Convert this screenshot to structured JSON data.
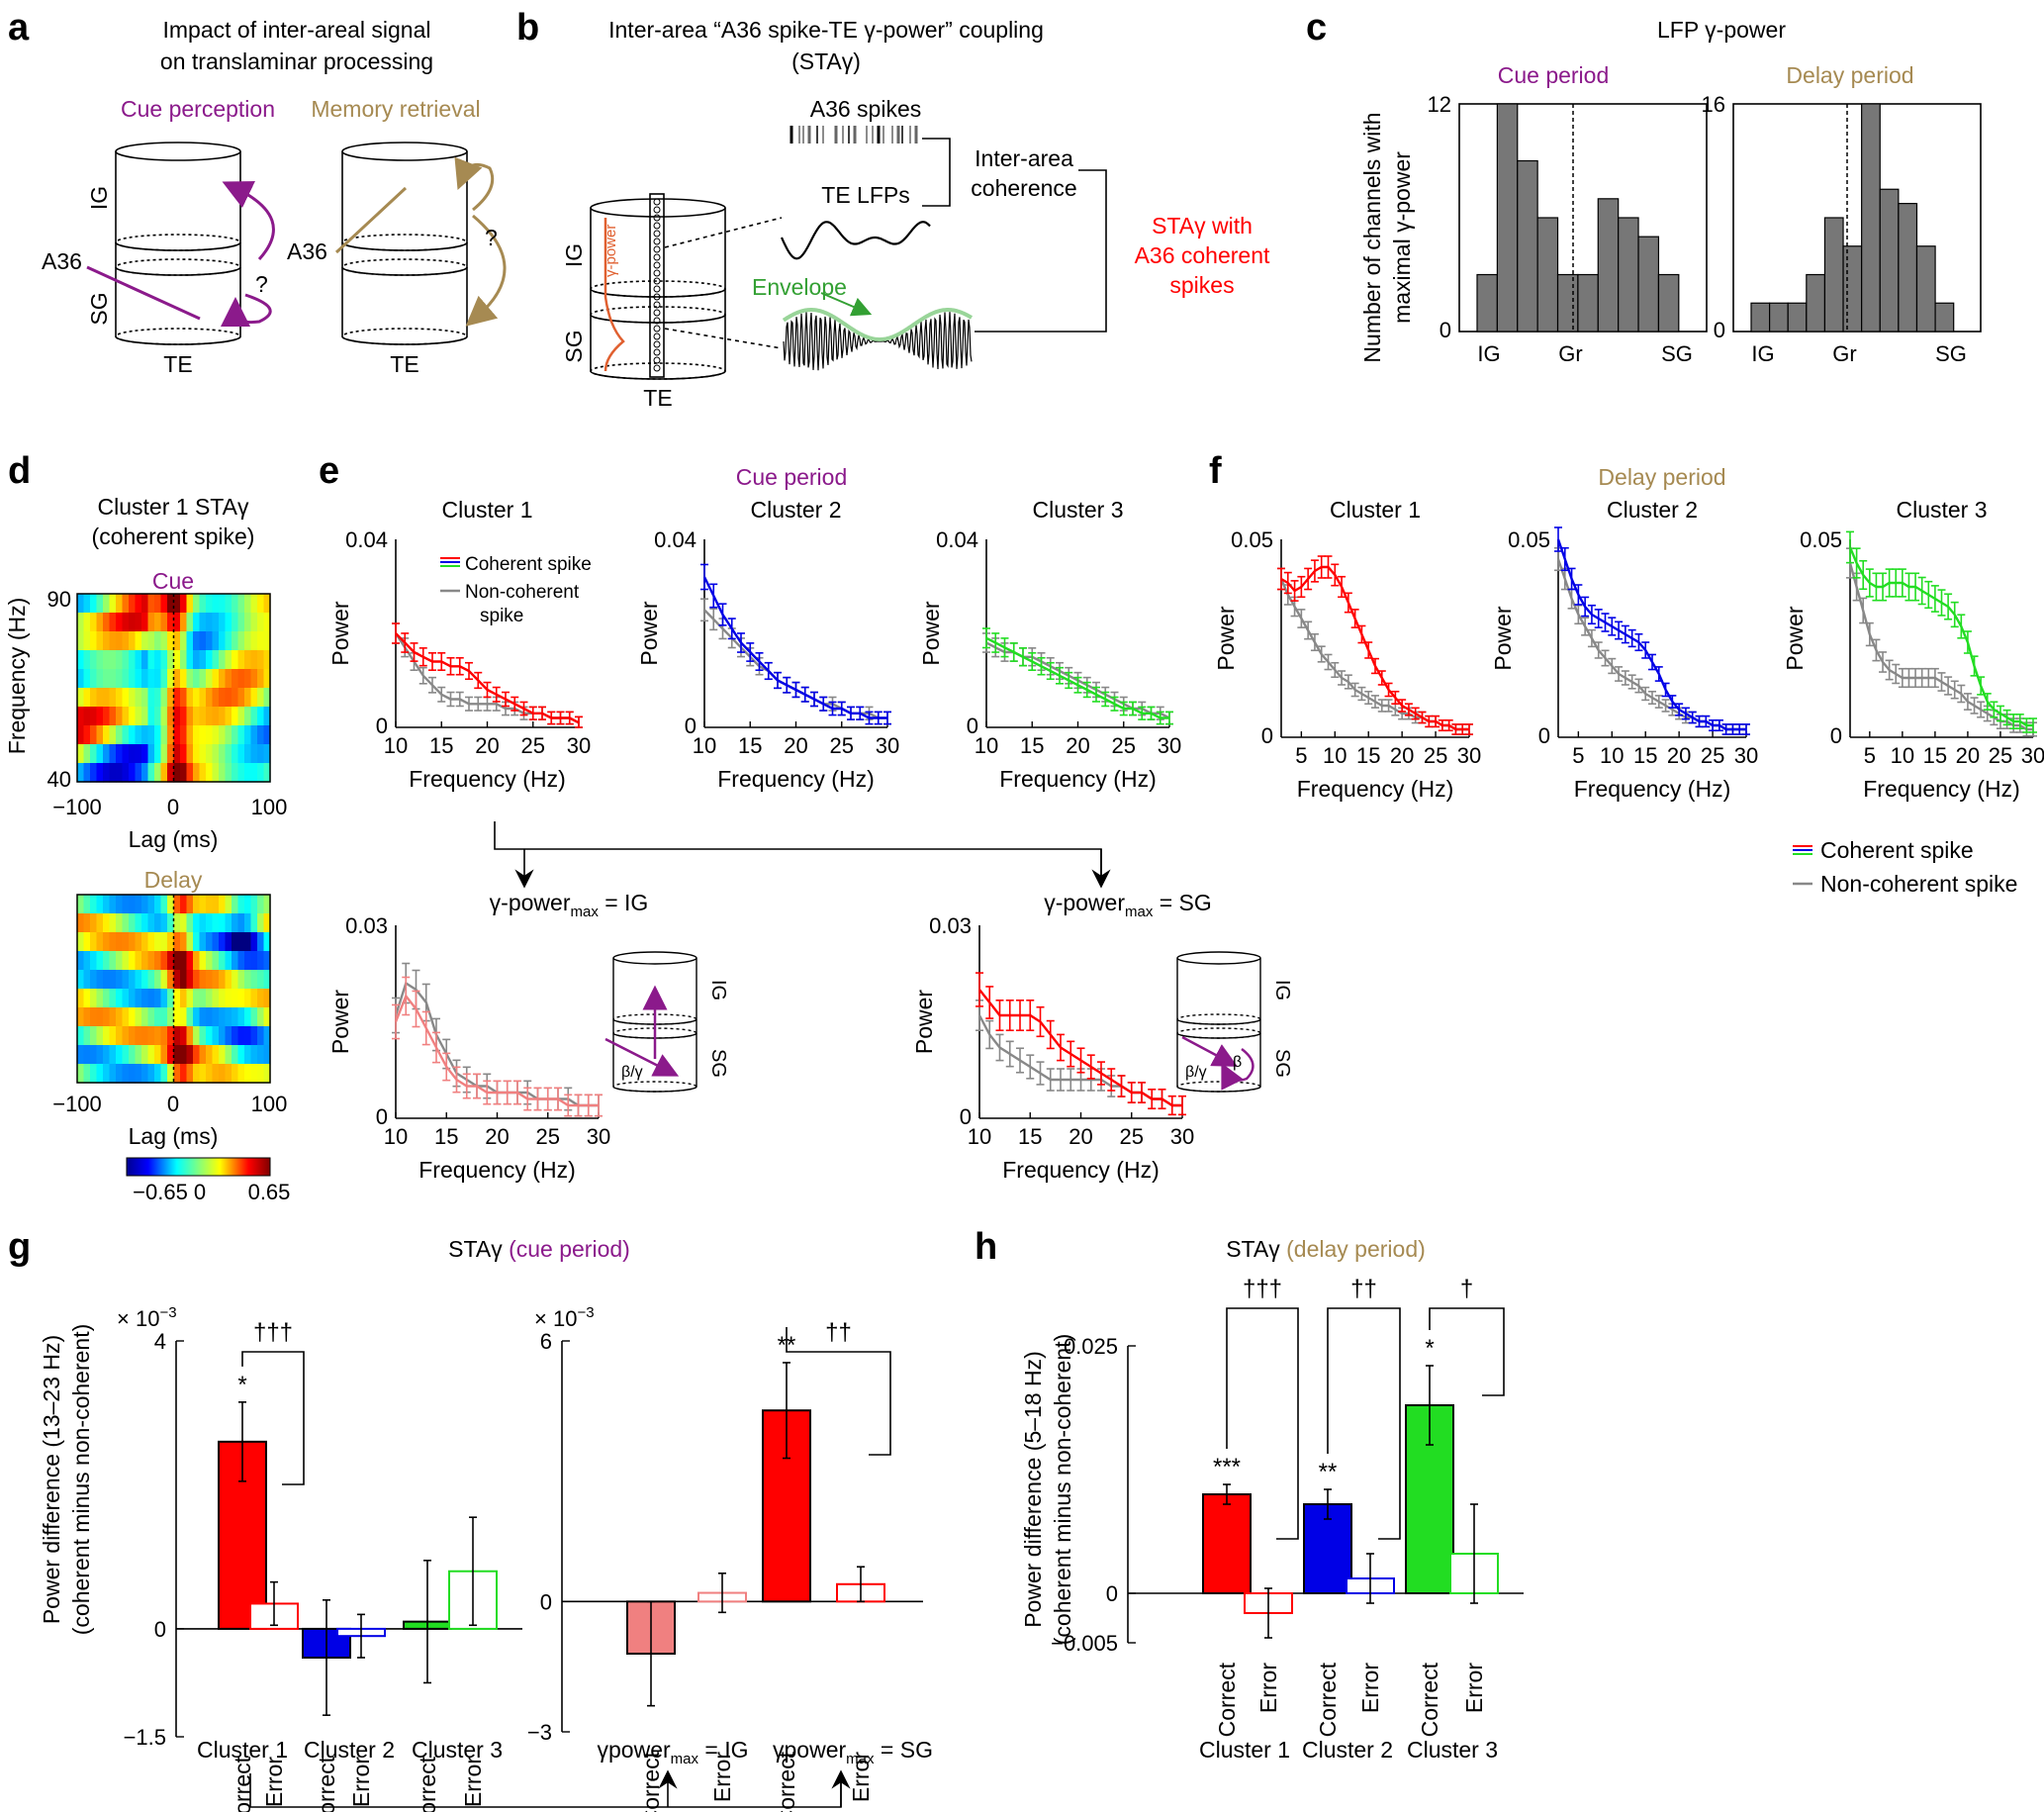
{
  "colors": {
    "cue": "#8B1A8B",
    "delay": "#A68A52",
    "red": "#FF0000",
    "blue": "#0000E6",
    "green": "#22DD22",
    "gray": "#888888",
    "pink": "#F08080",
    "envelope": "#33A033"
  },
  "panels": {
    "a": {
      "label": "a",
      "title_line1": "Impact of inter-areal signal",
      "title_line2": "on translaminar processing",
      "cue_perception": "Cue perception",
      "memory_retrieval": "Memory retrieval",
      "ig": "IG",
      "sg": "SG",
      "te": "TE",
      "a36": "A36",
      "q": "?"
    },
    "b": {
      "label": "b",
      "title_line1": "Inter-area “A36 spike-TE γ-power” coupling",
      "title_line2": "(STAγ)",
      "a36_spikes": "A36 spikes",
      "te_lfps": "TE LFPs",
      "inter_area_line1": "Inter-area",
      "inter_area_line2": "coherence",
      "envelope": "Envelope",
      "gamma_power": "γ-power",
      "sta_line1": "STAγ with",
      "sta_line2": "A36 coherent",
      "sta_line3": "spikes",
      "ig": "IG",
      "sg": "SG",
      "te": "TE"
    },
    "c": {
      "label": "c",
      "title": "LFP γ-power",
      "ylabel_line1": "Number of channels with",
      "ylabel_line2": "maximal γ-power",
      "cue": "Cue period",
      "delay": "Delay period",
      "x_ticks": [
        "IG",
        "Gr",
        "SG"
      ],
      "cue_ymax": "12",
      "delay_ymax": "16",
      "zero": "0"
    },
    "d": {
      "label": "d",
      "title_line1": "Cluster 1 STAγ",
      "title_line2": "(coherent spike)",
      "cue": "Cue",
      "delay": "Delay",
      "ylabel": "Frequency (Hz)",
      "xlabel": "Lag (ms)",
      "y_ticks": [
        "90",
        "40"
      ],
      "x_ticks": [
        "−100",
        "0",
        "100"
      ],
      "colorbar_ticks": [
        "−0.65",
        "0",
        "0.65"
      ]
    },
    "e": {
      "label": "e",
      "period": "Cue period",
      "clusters": [
        "Cluster 1",
        "Cluster 2",
        "Cluster 3"
      ],
      "ymax": "0.04",
      "zero": "0",
      "ylabel": "Power",
      "xlabel": "Frequency (Hz)",
      "x_ticks": [
        "10",
        "15",
        "20",
        "25",
        "30"
      ],
      "legend_coherent": "Coherent spike",
      "legend_noncoh_line1": "Non-coherent",
      "legend_noncoh_line2": "spike",
      "ig_title_prefix": "γ-power",
      "ig_title_sub": "max",
      "ig_title_suffix": " = IG",
      "sg_title_suffix": " = SG",
      "sub_ymax": "0.03",
      "beta_gamma": "β/γ",
      "beta": "β"
    },
    "f": {
      "label": "f",
      "period": "Delay period",
      "clusters": [
        "Cluster 1",
        "Cluster 2",
        "Cluster 3"
      ],
      "ymax": "0.05",
      "zero": "0",
      "ylabel": "Power",
      "xlabel": "Frequency (Hz)",
      "x_ticks": [
        "5",
        "10",
        "15",
        "20",
        "25",
        "30"
      ],
      "legend_coherent": "Coherent spike",
      "legend_noncoherent": "Non-coherent spike"
    },
    "g": {
      "label": "g",
      "title_prefix": "STAγ ",
      "title_period": "(cue period)",
      "ylabel_line1": "Power difference (13–23 Hz)",
      "ylabel_line2": "(coherent minus non-coherent)",
      "scale": "× 10",
      "scale_exp": "−3",
      "left_ticks": [
        "4",
        "0",
        "−1.5"
      ],
      "right_ticks": [
        "6",
        "0",
        "−3"
      ],
      "correct": "Correct",
      "error": "Error",
      "groups_left": [
        "Cluster 1",
        "Cluster 2",
        "Cluster 3"
      ],
      "ig_group": "γpower",
      "sg_group": "γpower",
      "sub": "max",
      "ig_suffix": " = IG",
      "sg_suffix": " = SG",
      "sig": [
        "*",
        "**",
        "†††",
        "††"
      ]
    },
    "h": {
      "label": "h",
      "title_prefix": "STAγ ",
      "title_period": "(delay period)",
      "ylabel_line1": "Power difference (5–18 Hz)",
      "ylabel_line2": "(coherent minus non-coherent)",
      "ticks": [
        "0.025",
        "0",
        "−0.005"
      ],
      "correct": "Correct",
      "error": "Error",
      "groups": [
        "Cluster 1",
        "Cluster 2",
        "Cluster 3"
      ],
      "sig": [
        "***",
        "**",
        "*",
        "†††",
        "††",
        "†"
      ]
    }
  },
  "chart_data": [
    {
      "id": "c-cue",
      "type": "bar",
      "title": "Cue period",
      "ylim": [
        0,
        12
      ],
      "values": [
        3,
        12,
        9,
        6,
        3,
        3,
        7,
        6,
        5,
        3
      ]
    },
    {
      "id": "c-delay",
      "type": "bar",
      "title": "Delay period",
      "ylim": [
        0,
        16
      ],
      "values": [
        2,
        2,
        2,
        4,
        8,
        6,
        16,
        10,
        9,
        6,
        2
      ]
    },
    {
      "id": "e-c1",
      "type": "line",
      "title": "Cluster 1",
      "xlabel": "Frequency (Hz)",
      "ylabel": "Power",
      "ylim": [
        0,
        0.04
      ],
      "x": [
        10,
        11,
        12,
        13,
        14,
        15,
        16,
        17,
        18,
        19,
        20,
        21,
        22,
        23,
        24,
        25,
        26,
        27,
        28,
        29,
        30
      ],
      "series": [
        {
          "name": "Coherent spike",
          "values": [
            0.02,
            0.018,
            0.016,
            0.015,
            0.014,
            0.014,
            0.013,
            0.013,
            0.012,
            0.01,
            0.008,
            0.007,
            0.006,
            0.005,
            0.004,
            0.003,
            0.003,
            0.002,
            0.002,
            0.002,
            0.001
          ]
        },
        {
          "name": "Non-coherent spike",
          "values": [
            0.02,
            0.017,
            0.014,
            0.011,
            0.009,
            0.007,
            0.006,
            0.006,
            0.005,
            0.005,
            0.005,
            0.005,
            0.004,
            0.004,
            0.003,
            0.003,
            0.003,
            0.002,
            0.002,
            0.002,
            0.001
          ]
        }
      ]
    },
    {
      "id": "e-c2",
      "type": "line",
      "title": "Cluster 2",
      "ylim": [
        0,
        0.04
      ],
      "x": [
        10,
        11,
        12,
        13,
        14,
        15,
        16,
        17,
        18,
        19,
        20,
        21,
        22,
        23,
        24,
        25,
        26,
        27,
        28,
        29,
        30
      ],
      "series": [
        {
          "name": "Coherent spike",
          "values": [
            0.032,
            0.028,
            0.024,
            0.021,
            0.018,
            0.016,
            0.014,
            0.012,
            0.01,
            0.009,
            0.008,
            0.007,
            0.006,
            0.005,
            0.004,
            0.004,
            0.003,
            0.003,
            0.002,
            0.002,
            0.002
          ]
        },
        {
          "name": "Non-coherent spike",
          "values": [
            0.025,
            0.023,
            0.021,
            0.019,
            0.017,
            0.015,
            0.013,
            0.012,
            0.01,
            0.009,
            0.008,
            0.007,
            0.006,
            0.005,
            0.005,
            0.004,
            0.003,
            0.003,
            0.003,
            0.002,
            0.002
          ]
        }
      ]
    },
    {
      "id": "e-c3",
      "type": "line",
      "title": "Cluster 3",
      "ylim": [
        0,
        0.04
      ],
      "x": [
        10,
        11,
        12,
        13,
        14,
        15,
        16,
        17,
        18,
        19,
        20,
        21,
        22,
        23,
        24,
        25,
        26,
        27,
        28,
        29,
        30
      ],
      "series": [
        {
          "name": "Coherent spike",
          "values": [
            0.019,
            0.018,
            0.017,
            0.016,
            0.015,
            0.014,
            0.013,
            0.012,
            0.011,
            0.01,
            0.009,
            0.008,
            0.007,
            0.006,
            0.005,
            0.004,
            0.004,
            0.003,
            0.003,
            0.002,
            0.002
          ]
        },
        {
          "name": "Non-coherent spike",
          "values": [
            0.018,
            0.017,
            0.016,
            0.016,
            0.015,
            0.015,
            0.014,
            0.013,
            0.012,
            0.011,
            0.01,
            0.009,
            0.008,
            0.007,
            0.006,
            0.005,
            0.004,
            0.004,
            0.003,
            0.003,
            0.002
          ]
        }
      ]
    },
    {
      "id": "e-ig",
      "type": "line",
      "title": "IG",
      "ylim": [
        0,
        0.03
      ],
      "x": [
        10,
        11,
        12,
        13,
        14,
        15,
        16,
        17,
        18,
        19,
        20,
        21,
        22,
        23,
        24,
        25,
        26,
        27,
        28,
        29,
        30
      ],
      "series": [
        {
          "name": "Coherent spike",
          "values": [
            0.015,
            0.019,
            0.017,
            0.014,
            0.011,
            0.008,
            0.006,
            0.005,
            0.005,
            0.004,
            0.004,
            0.004,
            0.004,
            0.003,
            0.003,
            0.003,
            0.003,
            0.002,
            0.002,
            0.002,
            0.002
          ]
        },
        {
          "name": "Non-coherent spike",
          "values": [
            0.016,
            0.021,
            0.02,
            0.018,
            0.013,
            0.01,
            0.007,
            0.006,
            0.005,
            0.005,
            0.004,
            0.004,
            0.004,
            0.004,
            0.003,
            0.003,
            0.003,
            0.003,
            0.002,
            0.002,
            0.002
          ]
        }
      ]
    },
    {
      "id": "e-sg",
      "type": "line",
      "title": "SG",
      "ylim": [
        0,
        0.03
      ],
      "x": [
        10,
        11,
        12,
        13,
        14,
        15,
        16,
        17,
        18,
        19,
        20,
        21,
        22,
        23,
        24,
        25,
        26,
        27,
        28,
        29,
        30
      ],
      "series": [
        {
          "name": "Coherent spike",
          "values": [
            0.02,
            0.018,
            0.016,
            0.016,
            0.016,
            0.016,
            0.015,
            0.013,
            0.011,
            0.01,
            0.009,
            0.008,
            0.007,
            0.006,
            0.005,
            0.004,
            0.004,
            0.003,
            0.003,
            0.002,
            0.002
          ]
        },
        {
          "name": "Non-coherent spike",
          "values": [
            0.016,
            0.013,
            0.011,
            0.01,
            0.009,
            0.008,
            0.007,
            0.006,
            0.006,
            0.006,
            0.006,
            0.006,
            0.006,
            0.005,
            0.005,
            0.004,
            0.004,
            0.003,
            0.003,
            0.002,
            0.002
          ]
        }
      ]
    },
    {
      "id": "f-c1",
      "type": "line",
      "title": "Cluster 1",
      "ylim": [
        0,
        0.05
      ],
      "x": [
        2,
        3,
        4,
        5,
        6,
        7,
        8,
        9,
        10,
        11,
        12,
        13,
        14,
        15,
        16,
        17,
        18,
        19,
        20,
        21,
        22,
        23,
        24,
        25,
        26,
        27,
        28,
        29,
        30
      ],
      "series": [
        {
          "name": "Coherent spike",
          "values": [
            0.04,
            0.039,
            0.037,
            0.038,
            0.04,
            0.042,
            0.043,
            0.043,
            0.041,
            0.038,
            0.034,
            0.03,
            0.026,
            0.022,
            0.018,
            0.015,
            0.012,
            0.01,
            0.008,
            0.007,
            0.006,
            0.005,
            0.004,
            0.004,
            0.003,
            0.003,
            0.002,
            0.002,
            0.002
          ]
        },
        {
          "name": "Non-coherent spike",
          "values": [
            0.04,
            0.036,
            0.033,
            0.03,
            0.027,
            0.024,
            0.021,
            0.019,
            0.017,
            0.015,
            0.014,
            0.012,
            0.011,
            0.01,
            0.009,
            0.008,
            0.008,
            0.007,
            0.006,
            0.006,
            0.005,
            0.005,
            0.004,
            0.004,
            0.003,
            0.003,
            0.002,
            0.002,
            0.002
          ]
        }
      ]
    },
    {
      "id": "f-c2",
      "type": "line",
      "title": "Cluster 2",
      "ylim": [
        0,
        0.05
      ],
      "x": [
        2,
        3,
        4,
        5,
        6,
        7,
        8,
        9,
        10,
        11,
        12,
        13,
        14,
        15,
        16,
        17,
        18,
        19,
        20,
        21,
        22,
        23,
        24,
        25,
        26,
        27,
        28,
        29,
        30
      ],
      "series": [
        {
          "name": "Coherent spike",
          "values": [
            0.05,
            0.045,
            0.04,
            0.036,
            0.033,
            0.031,
            0.03,
            0.029,
            0.028,
            0.027,
            0.026,
            0.025,
            0.024,
            0.022,
            0.019,
            0.016,
            0.012,
            0.009,
            0.007,
            0.006,
            0.005,
            0.004,
            0.004,
            0.003,
            0.003,
            0.002,
            0.002,
            0.002,
            0.002
          ]
        },
        {
          "name": "Non-coherent spike",
          "values": [
            0.045,
            0.04,
            0.035,
            0.031,
            0.028,
            0.025,
            0.022,
            0.02,
            0.018,
            0.016,
            0.015,
            0.014,
            0.013,
            0.011,
            0.01,
            0.009,
            0.008,
            0.007,
            0.006,
            0.005,
            0.005,
            0.004,
            0.004,
            0.003,
            0.003,
            0.002,
            0.002,
            0.002,
            0.002
          ]
        }
      ]
    },
    {
      "id": "f-c3",
      "type": "line",
      "title": "Cluster 3",
      "ylim": [
        0,
        0.05
      ],
      "x": [
        2,
        3,
        4,
        5,
        6,
        7,
        8,
        9,
        10,
        11,
        12,
        13,
        14,
        15,
        16,
        17,
        18,
        19,
        20,
        21,
        22,
        23,
        24,
        25,
        26,
        27,
        28,
        29,
        30
      ],
      "series": [
        {
          "name": "Coherent spike",
          "values": [
            0.048,
            0.044,
            0.041,
            0.039,
            0.038,
            0.038,
            0.039,
            0.039,
            0.039,
            0.038,
            0.038,
            0.037,
            0.036,
            0.035,
            0.034,
            0.033,
            0.031,
            0.028,
            0.024,
            0.018,
            0.013,
            0.009,
            0.007,
            0.006,
            0.005,
            0.004,
            0.004,
            0.003,
            0.003
          ]
        },
        {
          "name": "Non-coherent spike",
          "values": [
            0.044,
            0.038,
            0.032,
            0.026,
            0.022,
            0.019,
            0.017,
            0.016,
            0.015,
            0.015,
            0.015,
            0.015,
            0.015,
            0.015,
            0.014,
            0.013,
            0.012,
            0.011,
            0.009,
            0.008,
            0.007,
            0.006,
            0.005,
            0.004,
            0.004,
            0.003,
            0.003,
            0.002,
            0.002
          ]
        }
      ]
    },
    {
      "id": "g-left",
      "type": "bar",
      "ylim": [
        -1.5,
        4
      ],
      "categories": [
        "Cluster 1 Correct",
        "Cluster 1 Error",
        "Cluster 2 Correct",
        "Cluster 2 Error",
        "Cluster 3 Correct",
        "Cluster 3 Error"
      ],
      "values": [
        2.6,
        0.35,
        -0.4,
        -0.1,
        0.1,
        0.8
      ],
      "errors": [
        0.55,
        0.3,
        0.8,
        0.3,
        0.85,
        0.75
      ]
    },
    {
      "id": "g-right",
      "type": "bar",
      "ylim": [
        -3,
        6
      ],
      "categories": [
        "IG Correct",
        "IG Error",
        "SG Correct",
        "SG Error"
      ],
      "values": [
        -1.2,
        0.2,
        4.4,
        0.4
      ],
      "errors": [
        1.2,
        0.45,
        1.1,
        0.4
      ]
    },
    {
      "id": "h",
      "type": "bar",
      "ylim": [
        -0.005,
        0.025
      ],
      "categories": [
        "Cluster 1 Correct",
        "Cluster 1 Error",
        "Cluster 2 Correct",
        "Cluster 2 Error",
        "Cluster 3 Correct",
        "Cluster 3 Error"
      ],
      "values": [
        0.01,
        -0.002,
        0.009,
        0.0015,
        0.019,
        0.004
      ],
      "errors": [
        0.001,
        0.0025,
        0.0015,
        0.0025,
        0.004,
        0.005
      ]
    }
  ]
}
